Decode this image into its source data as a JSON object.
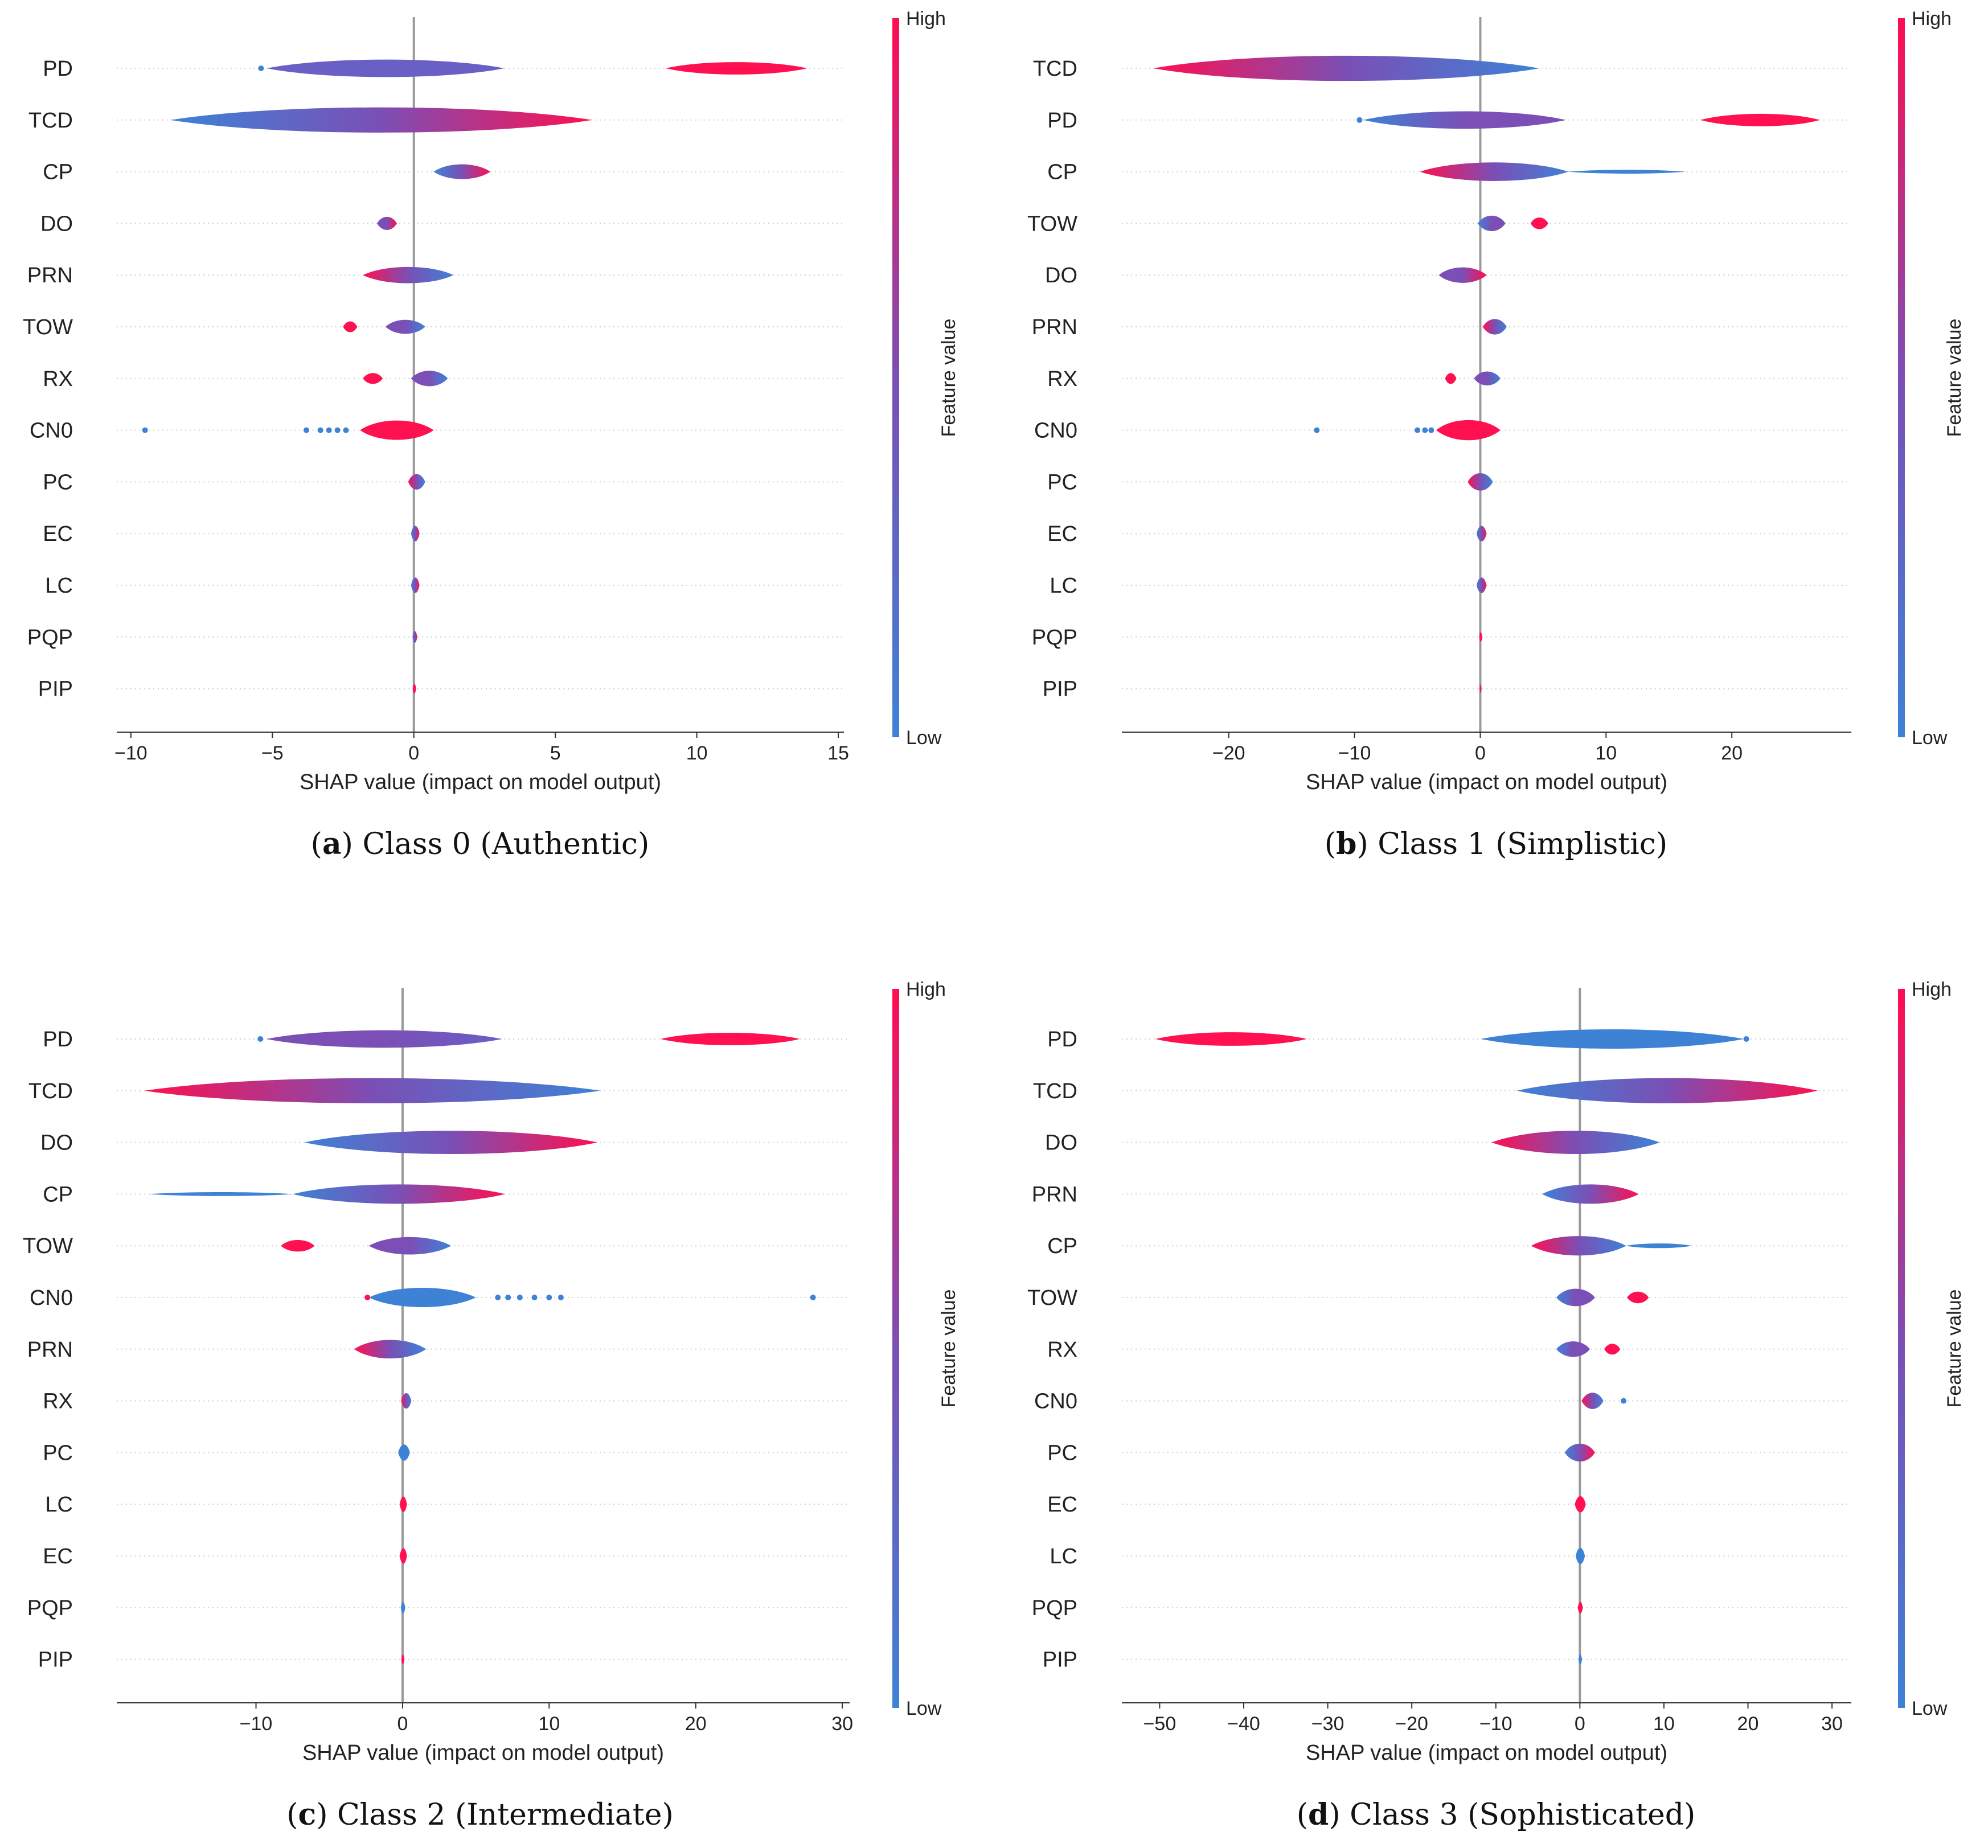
{
  "colors": {
    "low": "#3e82d6",
    "mid": "#7b4fb5",
    "high": "#ff0d52",
    "zero_line": "#999999"
  },
  "colorbar": {
    "high_label": "High",
    "low_label": "Low",
    "title": "Feature value"
  },
  "chart_data": [
    {
      "type": "violin",
      "panel": "a",
      "caption_letter": "a",
      "caption_text": " Class 0 (Authentic)",
      "xlabel": "SHAP value (impact on model output)",
      "xlim": [
        -10.5,
        15.2
      ],
      "xticks": [
        -10,
        -5,
        0,
        5,
        10,
        15
      ],
      "xtick_labels": [
        "−10",
        "−5",
        "0",
        "5",
        "10",
        "15"
      ],
      "features": [
        {
          "name": "PD",
          "shapes": [
            {
              "x0": -5.2,
              "x1": 3.2,
              "c0": "#6a5fc4",
              "c1": "#6a5fc4",
              "h": 0.45
            },
            {
              "x0": 8.9,
              "x1": 13.9,
              "c0": "#ff1050",
              "c1": "#ff1050",
              "h": 0.32
            }
          ],
          "dots": [
            {
              "x": -5.4,
              "c": "#3e82d6"
            }
          ]
        },
        {
          "name": "TCD",
          "shapes": [
            {
              "x0": -8.6,
              "x1": 6.3,
              "c0": "#3e82d6",
              "c1": "#ff1050",
              "h": 0.65
            }
          ]
        },
        {
          "name": "CP",
          "shapes": [
            {
              "x0": 0.7,
              "x1": 2.7,
              "c0": "#3e82d6",
              "c1": "#ff1050",
              "h": 0.38
            }
          ]
        },
        {
          "name": "DO",
          "shapes": [
            {
              "x0": -1.3,
              "x1": -0.6,
              "c0": "#7b4fb5",
              "c1": "#ff1050",
              "h": 0.34
            }
          ]
        },
        {
          "name": "PRN",
          "shapes": [
            {
              "x0": -1.8,
              "x1": 1.4,
              "c0": "#ff1050",
              "c1": "#3e82d6",
              "h": 0.42
            }
          ]
        },
        {
          "name": "TOW",
          "shapes": [
            {
              "x0": -2.5,
              "x1": -2.0,
              "c0": "#ff1050",
              "c1": "#ff1050",
              "h": 0.28
            },
            {
              "x0": -1.0,
              "x1": 0.4,
              "c0": "#7b4fb5",
              "c1": "#3e82d6",
              "h": 0.36
            }
          ]
        },
        {
          "name": "RX",
          "shapes": [
            {
              "x0": -1.8,
              "x1": -1.1,
              "c0": "#ff1050",
              "c1": "#ff1050",
              "h": 0.28
            },
            {
              "x0": -0.1,
              "x1": 1.2,
              "c0": "#7b4fb5",
              "c1": "#3e82d6",
              "h": 0.4
            }
          ]
        },
        {
          "name": "CN0",
          "shapes": [
            {
              "x0": -1.9,
              "x1": 0.7,
              "c0": "#ff1050",
              "c1": "#ff1050",
              "h": 0.5
            }
          ],
          "dots": [
            {
              "x": -9.5,
              "c": "#3e82d6"
            },
            {
              "x": -3.8,
              "c": "#3e82d6"
            },
            {
              "x": -3.3,
              "c": "#3e82d6"
            },
            {
              "x": -3.0,
              "c": "#3e82d6"
            },
            {
              "x": -2.7,
              "c": "#3e82d6"
            },
            {
              "x": -2.4,
              "c": "#3e82d6"
            }
          ]
        },
        {
          "name": "PC",
          "shapes": [
            {
              "x0": -0.2,
              "x1": 0.4,
              "c0": "#ff1050",
              "c1": "#3e82d6",
              "h": 0.4
            }
          ]
        },
        {
          "name": "EC",
          "shapes": [
            {
              "x0": -0.1,
              "x1": 0.2,
              "c0": "#3e82d6",
              "c1": "#ff1050",
              "h": 0.4
            }
          ]
        },
        {
          "name": "LC",
          "shapes": [
            {
              "x0": -0.1,
              "x1": 0.2,
              "c0": "#3e82d6",
              "c1": "#ff1050",
              "h": 0.4
            }
          ]
        },
        {
          "name": "PQP",
          "shapes": [
            {
              "x0": -0.05,
              "x1": 0.12,
              "c0": "#3e82d6",
              "c1": "#ff1050",
              "h": 0.3
            }
          ]
        },
        {
          "name": "PIP",
          "shapes": [
            {
              "x0": -0.04,
              "x1": 0.08,
              "c0": "#ff1050",
              "c1": "#ff1050",
              "h": 0.25
            }
          ]
        }
      ]
    },
    {
      "type": "violin",
      "panel": "b",
      "caption_letter": "b",
      "caption_text": " Class 1 (Simplistic)",
      "xlabel": "SHAP value (impact on model output)",
      "xlim": [
        -28.5,
        29.5
      ],
      "xticks": [
        -20,
        -10,
        0,
        10,
        20
      ],
      "xtick_labels": [
        "−20",
        "−10",
        "0",
        "10",
        "20"
      ],
      "features": [
        {
          "name": "TCD",
          "shapes": [
            {
              "x0": -26,
              "x1": 4.7,
              "c0": "#ff1050",
              "c1": "#3e82d6",
              "h": 0.65
            }
          ]
        },
        {
          "name": "PD",
          "shapes": [
            {
              "x0": -9.3,
              "x1": 6.8,
              "c0": "#3e82d6",
              "c1": "#7b4fb5",
              "h": 0.45
            },
            {
              "x0": 17.5,
              "x1": 27.0,
              "c0": "#ff1050",
              "c1": "#ff1050",
              "h": 0.32
            }
          ],
          "dots": [
            {
              "x": -9.6,
              "c": "#3e82d6"
            }
          ]
        },
        {
          "name": "CP",
          "shapes": [
            {
              "x0": -4.8,
              "x1": 7.0,
              "c0": "#ff1050",
              "c1": "#3e82d6",
              "h": 0.48
            },
            {
              "x0": 7.0,
              "x1": 16.3,
              "c0": "#3e82d6",
              "c1": "#3e82d6",
              "h": 0.1
            }
          ]
        },
        {
          "name": "TOW",
          "shapes": [
            {
              "x0": -0.2,
              "x1": 2.0,
              "c0": "#3e82d6",
              "c1": "#7b4fb5",
              "h": 0.4
            },
            {
              "x0": 4.0,
              "x1": 5.4,
              "c0": "#ff1050",
              "c1": "#ff1050",
              "h": 0.3
            }
          ]
        },
        {
          "name": "DO",
          "shapes": [
            {
              "x0": -3.3,
              "x1": 0.5,
              "c0": "#7b4fb5",
              "c1": "#ff1050",
              "h": 0.4
            }
          ]
        },
        {
          "name": "PRN",
          "shapes": [
            {
              "x0": 0.2,
              "x1": 2.1,
              "c0": "#ff1050",
              "c1": "#3e82d6",
              "h": 0.4
            }
          ]
        },
        {
          "name": "RX",
          "shapes": [
            {
              "x0": -2.8,
              "x1": -1.9,
              "c0": "#ff1050",
              "c1": "#ff1050",
              "h": 0.28
            },
            {
              "x0": -0.5,
              "x1": 1.6,
              "c0": "#7b4fb5",
              "c1": "#3e82d6",
              "h": 0.36
            }
          ]
        },
        {
          "name": "CN0",
          "shapes": [
            {
              "x0": -3.5,
              "x1": 1.6,
              "c0": "#ff1050",
              "c1": "#ff1050",
              "h": 0.52
            }
          ],
          "dots": [
            {
              "x": -13.0,
              "c": "#3e82d6"
            },
            {
              "x": -5.0,
              "c": "#3e82d6"
            },
            {
              "x": -4.4,
              "c": "#3e82d6"
            },
            {
              "x": -3.9,
              "c": "#3e82d6"
            }
          ]
        },
        {
          "name": "PC",
          "shapes": [
            {
              "x0": -1.0,
              "x1": 1.0,
              "c0": "#ff1050",
              "c1": "#3e82d6",
              "h": 0.45
            }
          ]
        },
        {
          "name": "EC",
          "shapes": [
            {
              "x0": -0.3,
              "x1": 0.5,
              "c0": "#3e82d6",
              "c1": "#ff1050",
              "h": 0.4
            }
          ]
        },
        {
          "name": "LC",
          "shapes": [
            {
              "x0": -0.3,
              "x1": 0.5,
              "c0": "#3e82d6",
              "c1": "#ff1050",
              "h": 0.4
            }
          ]
        },
        {
          "name": "PQP",
          "shapes": [
            {
              "x0": -0.08,
              "x1": 0.15,
              "c0": "#ff1050",
              "c1": "#ff1050",
              "h": 0.25
            }
          ]
        },
        {
          "name": "PIP",
          "shapes": [
            {
              "x0": -0.05,
              "x1": 0.1,
              "c0": "#ff1050",
              "c1": "#ff1050",
              "h": 0.22
            }
          ]
        }
      ]
    },
    {
      "type": "violin",
      "panel": "c",
      "caption_letter": "c",
      "caption_text": " Class 2 (Intermediate)",
      "xlabel": "SHAP value (impact on model output)",
      "xlim": [
        -19.5,
        30.5
      ],
      "xticks": [
        -10,
        0,
        10,
        20,
        30
      ],
      "xtick_labels": [
        "−10",
        "0",
        "10",
        "20",
        "30"
      ],
      "features": [
        {
          "name": "PD",
          "shapes": [
            {
              "x0": -9.3,
              "x1": 6.8,
              "c0": "#7b4fb5",
              "c1": "#6a5fc4",
              "h": 0.45
            },
            {
              "x0": 17.6,
              "x1": 27.1,
              "c0": "#ff1050",
              "c1": "#ff1050",
              "h": 0.32
            }
          ],
          "dots": [
            {
              "x": -9.7,
              "c": "#3e82d6"
            }
          ]
        },
        {
          "name": "TCD",
          "shapes": [
            {
              "x0": -17.6,
              "x1": 13.5,
              "c0": "#ff1050",
              "c1": "#3e82d6",
              "h": 0.65
            }
          ]
        },
        {
          "name": "DO",
          "shapes": [
            {
              "x0": -6.7,
              "x1": 13.3,
              "c0": "#3e82d6",
              "c1": "#ff1050",
              "h": 0.6
            }
          ]
        },
        {
          "name": "CP",
          "shapes": [
            {
              "x0": -7.5,
              "x1": 7.0,
              "c0": "#3e82d6",
              "c1": "#ff1050",
              "h": 0.5
            },
            {
              "x0": -17.3,
              "x1": -7.5,
              "c0": "#3e82d6",
              "c1": "#3e82d6",
              "h": 0.1
            }
          ]
        },
        {
          "name": "TOW",
          "shapes": [
            {
              "x0": -8.3,
              "x1": -6.0,
              "c0": "#ff1050",
              "c1": "#ff1050",
              "h": 0.3
            },
            {
              "x0": -2.3,
              "x1": 3.3,
              "c0": "#7b4fb5",
              "c1": "#3e82d6",
              "h": 0.45
            }
          ]
        },
        {
          "name": "CN0",
          "shapes": [
            {
              "x0": -2.3,
              "x1": 5.0,
              "c0": "#3e82d6",
              "c1": "#3e82d6",
              "h": 0.5
            }
          ],
          "dots": [
            {
              "x": -2.4,
              "c": "#ff1050"
            },
            {
              "x": 6.5,
              "c": "#3e82d6"
            },
            {
              "x": 7.2,
              "c": "#3e82d6"
            },
            {
              "x": 8.0,
              "c": "#3e82d6"
            },
            {
              "x": 9.0,
              "c": "#3e82d6"
            },
            {
              "x": 10.0,
              "c": "#3e82d6"
            },
            {
              "x": 10.8,
              "c": "#3e82d6"
            },
            {
              "x": 28.0,
              "c": "#3e82d6"
            }
          ]
        },
        {
          "name": "PRN",
          "shapes": [
            {
              "x0": -3.3,
              "x1": 1.6,
              "c0": "#ff1050",
              "c1": "#3e82d6",
              "h": 0.48
            }
          ]
        },
        {
          "name": "RX",
          "shapes": [
            {
              "x0": -0.1,
              "x1": 0.6,
              "c0": "#ff1050",
              "c1": "#3e82d6",
              "h": 0.4
            }
          ]
        },
        {
          "name": "PC",
          "shapes": [
            {
              "x0": -0.3,
              "x1": 0.5,
              "c0": "#3e82d6",
              "c1": "#3e82d6",
              "h": 0.42
            }
          ]
        },
        {
          "name": "LC",
          "shapes": [
            {
              "x0": -0.2,
              "x1": 0.3,
              "c0": "#ff1050",
              "c1": "#ff1050",
              "h": 0.4
            }
          ]
        },
        {
          "name": "EC",
          "shapes": [
            {
              "x0": -0.2,
              "x1": 0.3,
              "c0": "#ff1050",
              "c1": "#ff1050",
              "h": 0.4
            }
          ]
        },
        {
          "name": "PQP",
          "shapes": [
            {
              "x0": -0.12,
              "x1": 0.18,
              "c0": "#3e82d6",
              "c1": "#3e82d6",
              "h": 0.3
            }
          ]
        },
        {
          "name": "PIP",
          "shapes": [
            {
              "x0": -0.08,
              "x1": 0.12,
              "c0": "#ff1050",
              "c1": "#ff1050",
              "h": 0.25
            }
          ]
        }
      ]
    },
    {
      "type": "violin",
      "panel": "d",
      "caption_letter": "d",
      "caption_text": " Class 3 (Sophisticated)",
      "xlabel": "SHAP value (impact on model output)",
      "xlim": [
        -54.5,
        32.3
      ],
      "xticks": [
        -50,
        -40,
        -30,
        -20,
        -10,
        0,
        10,
        20,
        30
      ],
      "xtick_labels": [
        "−50",
        "−40",
        "−30",
        "−20",
        "−10",
        "0",
        "10",
        "20",
        "30"
      ],
      "features": [
        {
          "name": "PD",
          "shapes": [
            {
              "x0": -50.5,
              "x1": -32.5,
              "c0": "#ff1050",
              "c1": "#ff1050",
              "h": 0.35
            },
            {
              "x0": -11.8,
              "x1": 19.5,
              "c0": "#3e82d6",
              "c1": "#3e82d6",
              "h": 0.5
            }
          ],
          "dots": [
            {
              "x": 19.8,
              "c": "#3e82d6"
            }
          ]
        },
        {
          "name": "TCD",
          "shapes": [
            {
              "x0": -7.5,
              "x1": 28.3,
              "c0": "#3e82d6",
              "c1": "#ff1050",
              "h": 0.65
            }
          ]
        },
        {
          "name": "DO",
          "shapes": [
            {
              "x0": -10.5,
              "x1": 9.5,
              "c0": "#ff1050",
              "c1": "#3e82d6",
              "h": 0.6
            }
          ]
        },
        {
          "name": "PRN",
          "shapes": [
            {
              "x0": -4.5,
              "x1": 7.0,
              "c0": "#3e82d6",
              "c1": "#ff1050",
              "h": 0.5
            }
          ]
        },
        {
          "name": "CP",
          "shapes": [
            {
              "x0": -5.8,
              "x1": 5.5,
              "c0": "#ff1050",
              "c1": "#3e82d6",
              "h": 0.5
            },
            {
              "x0": 5.5,
              "x1": 13.3,
              "c0": "#3e82d6",
              "c1": "#3e82d6",
              "h": 0.12
            }
          ]
        },
        {
          "name": "TOW",
          "shapes": [
            {
              "x0": -2.8,
              "x1": 1.8,
              "c0": "#3e82d6",
              "c1": "#7b4fb5",
              "h": 0.45
            },
            {
              "x0": 5.6,
              "x1": 8.2,
              "c0": "#ff1050",
              "c1": "#ff1050",
              "h": 0.3
            }
          ]
        },
        {
          "name": "RX",
          "shapes": [
            {
              "x0": -2.8,
              "x1": 1.2,
              "c0": "#3e82d6",
              "c1": "#7b4fb5",
              "h": 0.4
            },
            {
              "x0": 2.9,
              "x1": 4.8,
              "c0": "#ff1050",
              "c1": "#ff1050",
              "h": 0.28
            }
          ]
        },
        {
          "name": "CN0",
          "shapes": [
            {
              "x0": 0.2,
              "x1": 2.8,
              "c0": "#ff1050",
              "c1": "#3e82d6",
              "h": 0.42
            }
          ],
          "dots": [
            {
              "x": 5.2,
              "c": "#3e82d6"
            }
          ]
        },
        {
          "name": "PC",
          "shapes": [
            {
              "x0": -1.8,
              "x1": 1.8,
              "c0": "#3e82d6",
              "c1": "#ff1050",
              "h": 0.46
            }
          ]
        },
        {
          "name": "EC",
          "shapes": [
            {
              "x0": -0.6,
              "x1": 0.7,
              "c0": "#ff1050",
              "c1": "#ff1050",
              "h": 0.42
            }
          ]
        },
        {
          "name": "LC",
          "shapes": [
            {
              "x0": -0.5,
              "x1": 0.6,
              "c0": "#3e82d6",
              "c1": "#3e82d6",
              "h": 0.42
            }
          ]
        },
        {
          "name": "PQP",
          "shapes": [
            {
              "x0": -0.25,
              "x1": 0.35,
              "c0": "#ff1050",
              "c1": "#ff1050",
              "h": 0.3
            }
          ]
        },
        {
          "name": "PIP",
          "shapes": [
            {
              "x0": -0.15,
              "x1": 0.25,
              "c0": "#3e82d6",
              "c1": "#3e82d6",
              "h": 0.26
            }
          ]
        }
      ]
    }
  ]
}
